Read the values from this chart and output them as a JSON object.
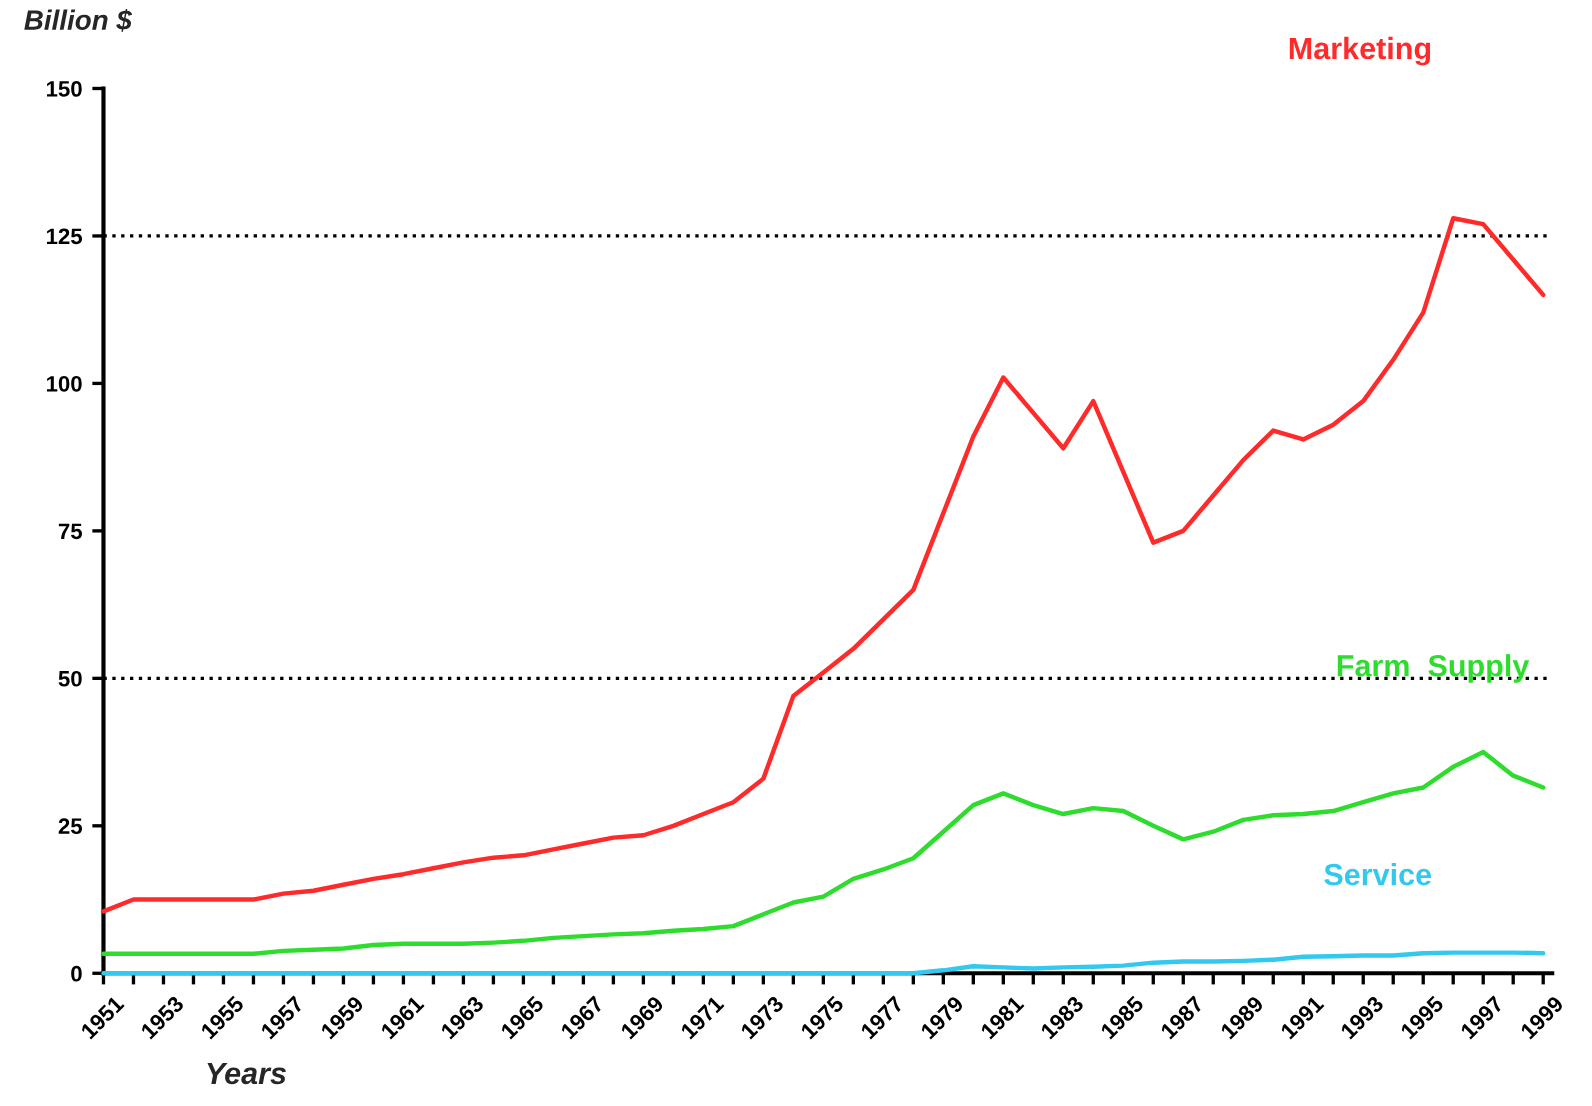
{
  "chart_data": {
    "type": "line",
    "xlabel": "Years",
    "ylabel": "Billion $",
    "x": [
      1951,
      1952,
      1953,
      1954,
      1955,
      1956,
      1957,
      1958,
      1959,
      1960,
      1961,
      1962,
      1963,
      1964,
      1965,
      1966,
      1967,
      1968,
      1969,
      1970,
      1971,
      1972,
      1973,
      1974,
      1975,
      1976,
      1977,
      1978,
      1979,
      1980,
      1981,
      1982,
      1983,
      1984,
      1985,
      1986,
      1987,
      1988,
      1989,
      1990,
      1991,
      1992,
      1993,
      1994,
      1995,
      1996,
      1997,
      1998,
      1999
    ],
    "series": [
      {
        "name": "Marketing",
        "color": "#ff2a2a",
        "values": [
          10.5,
          12.5,
          12.5,
          12.5,
          12.5,
          12.5,
          13.5,
          14,
          15,
          16,
          16.8,
          17.8,
          18.8,
          19.6,
          20,
          21,
          22,
          23,
          23.4,
          25,
          27,
          29,
          33,
          47,
          51,
          55,
          60,
          65,
          78,
          91,
          101,
          95,
          89,
          97,
          85,
          73,
          75,
          81,
          87,
          92,
          90.5,
          93,
          97,
          104,
          112,
          128,
          127,
          121,
          115
        ]
      },
      {
        "name": "Farm  Supply",
        "color": "#2ddc2d",
        "values": [
          3.3,
          3.3,
          3.3,
          3.3,
          3.3,
          3.3,
          3.8,
          4,
          4.2,
          4.8,
          5,
          5,
          5,
          5.2,
          5.5,
          6,
          6.3,
          6.6,
          6.8,
          7.2,
          7.5,
          8,
          10,
          12,
          13,
          16,
          17.6,
          19.5,
          24,
          28.5,
          30.5,
          28.5,
          27,
          28,
          27.5,
          25,
          22.7,
          24,
          26,
          26.8,
          27,
          27.5,
          29,
          30.5,
          31.5,
          35,
          37.5,
          33.5,
          31.5
        ]
      },
      {
        "name": "Service",
        "color": "#33c8ee",
        "values": [
          0,
          0,
          0,
          0,
          0,
          0,
          0,
          0,
          0,
          0,
          0,
          0,
          0,
          0,
          0,
          0,
          0,
          0,
          0,
          0,
          0,
          0,
          0,
          0,
          0,
          0,
          0,
          0,
          0.5,
          1.2,
          1,
          0.8,
          1,
          1.1,
          1.3,
          1.8,
          2,
          2,
          2.1,
          2.3,
          2.8,
          2.9,
          3,
          3,
          3.4,
          3.5,
          3.5,
          3.5,
          3.4
        ]
      }
    ],
    "xlim": [
      1951,
      1999.3
    ],
    "xticks": [
      1951,
      {
        "value": 1952,
        "label": null
      },
      1953,
      {
        "value": 1954,
        "label": null
      },
      1955,
      {
        "value": 1956,
        "label": null
      },
      1957,
      {
        "value": 1958,
        "label": null
      },
      1959,
      {
        "value": 1960,
        "label": null
      },
      1961,
      {
        "value": 1962,
        "label": null
      },
      1963,
      {
        "value": 1964,
        "label": null
      },
      1965,
      {
        "value": 1966,
        "label": null
      },
      1967,
      {
        "value": 1968,
        "label": null
      },
      1969,
      {
        "value": 1970,
        "label": null
      },
      1971,
      {
        "value": 1972,
        "label": null
      },
      1973,
      {
        "value": 1974,
        "label": null
      },
      1975,
      {
        "value": 1976,
        "label": null
      },
      1977,
      {
        "value": 1978,
        "label": null
      },
      1979,
      {
        "value": 1980,
        "label": null
      },
      1981,
      {
        "value": 1982,
        "label": null
      },
      1983,
      {
        "value": 1984,
        "label": null
      },
      1985,
      {
        "value": 1986,
        "label": null
      },
      1987,
      {
        "value": 1988,
        "label": null
      },
      1989,
      {
        "value": 1990,
        "label": null
      },
      1991,
      {
        "value": 1992,
        "label": null
      },
      1993,
      {
        "value": 1994,
        "label": null
      },
      1995,
      {
        "value": 1996,
        "label": null
      },
      1997,
      {
        "value": 1998,
        "label": null
      },
      1999
    ],
    "ylim": [
      0,
      150
    ],
    "yticks": [
      0,
      25,
      50,
      75,
      100,
      125,
      150
    ],
    "ref_lines": [
      {
        "axis": "y",
        "value": 125,
        "color": "#000000",
        "line_style": "dotted"
      },
      {
        "axis": "y",
        "value": 50,
        "color": "#000000",
        "line_style": "dotted"
      }
    ],
    "grid": false,
    "legend": false,
    "marker": "none",
    "line_style": "solid"
  }
}
